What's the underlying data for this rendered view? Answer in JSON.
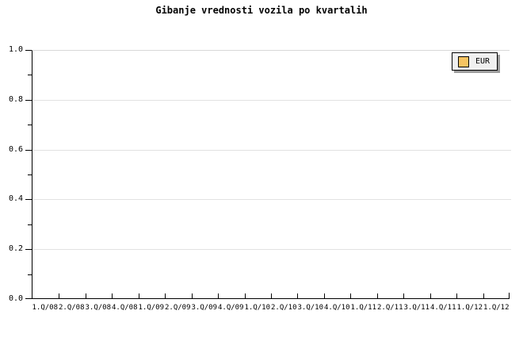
{
  "title": "Gibanje vrednosti vozila po kvartalih",
  "colors": {
    "background": "#ffffff",
    "axis": "#000000",
    "gridline": "#e2e2e2",
    "top_border": "#d8d8d8",
    "legend_background": "#f0f0f0",
    "legend_shadow": "#9c9c9c",
    "series_eur": "#f6c462"
  },
  "legend": {
    "label": "EUR",
    "swatch_color": "#f6c462",
    "position": "top-right"
  },
  "chart_data": {
    "type": "line",
    "title": "Gibanje vrednosti vozila po kvartalih",
    "categories": [
      "1.Q/08",
      "2.Q/08",
      "3.Q/08",
      "4.Q/08",
      "1.Q/09",
      "2.Q/09",
      "3.Q/09",
      "4.Q/09",
      "1.Q/10",
      "2.Q/10",
      "3.Q/10",
      "4.Q/10",
      "1.Q/11",
      "2.Q/11",
      "3.Q/11",
      "4.Q/11",
      "1.Q/12",
      "1.Q/12"
    ],
    "series": [
      {
        "name": "EUR",
        "color": "#f6c462",
        "values": []
      }
    ],
    "xlabel": "",
    "ylabel": "",
    "ylim": [
      0.0,
      1.0
    ],
    "y_ticks": [
      "1.0",
      "0.8",
      "0.6",
      "0.4",
      "0.2",
      "0.0"
    ],
    "y_major_step": 0.2,
    "y_minor_step": 0.1,
    "grid": true,
    "legend_position": "top-right",
    "plot_empty": true
  }
}
